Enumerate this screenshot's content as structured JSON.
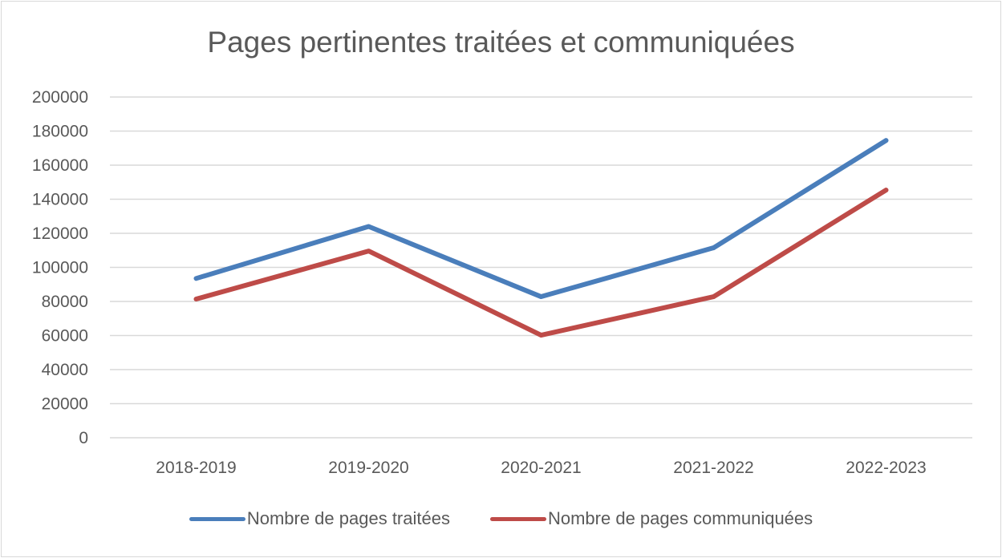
{
  "chart_data": {
    "type": "line",
    "title": "Pages pertinentes traitées et communiquées",
    "categories": [
      "2018-2019",
      "2019-2020",
      "2020-2021",
      "2021-2022",
      "2022-2023"
    ],
    "series": [
      {
        "name": "Nombre de pages traitées",
        "color": "#4a7ebb",
        "values": [
          93500,
          124000,
          82800,
          111500,
          174500
        ]
      },
      {
        "name": "Nombre de pages communiquées",
        "color": "#be4b48",
        "values": [
          81400,
          109600,
          60200,
          82800,
          145400
        ]
      }
    ],
    "ylim": [
      0,
      200000
    ],
    "yticks": [
      "0",
      "20000",
      "40000",
      "60000",
      "80000",
      "100000",
      "120000",
      "140000",
      "160000",
      "180000",
      "200000"
    ],
    "grid": true,
    "legend": "bottom"
  }
}
